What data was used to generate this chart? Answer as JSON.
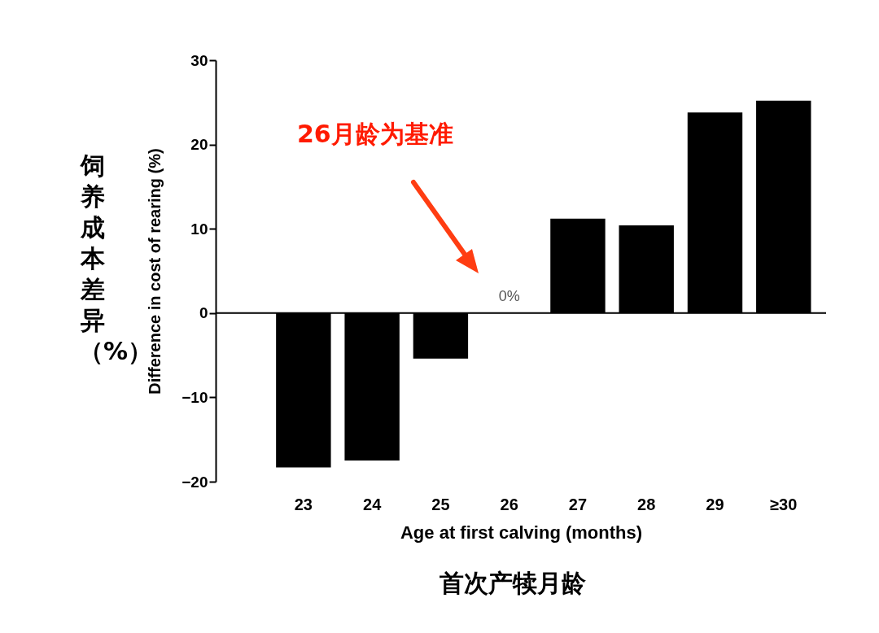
{
  "chart_data": {
    "type": "bar",
    "xlabel": "Age at first calving (months)",
    "ylabel": "Difference in cost of rearing (%)",
    "categories": [
      "23",
      "24",
      "25",
      "26",
      "27",
      "28",
      "29",
      "≥30"
    ],
    "values": [
      -18.3,
      -17.5,
      -5.4,
      0,
      11.2,
      10.4,
      23.8,
      25.2
    ],
    "value_labels": [
      null,
      null,
      null,
      "0%",
      null,
      null,
      null,
      null
    ],
    "color": "#000000",
    "ylim": [
      -20,
      30
    ],
    "yticks": [
      -20,
      -10,
      0,
      10,
      20,
      30
    ],
    "grid": false,
    "ref_lines": [
      {
        "axis": "y",
        "value": 0
      }
    ],
    "annotations": [
      "26月龄为基准",
      "饲养成本差异（%）",
      "首次产犊月龄"
    ]
  }
}
